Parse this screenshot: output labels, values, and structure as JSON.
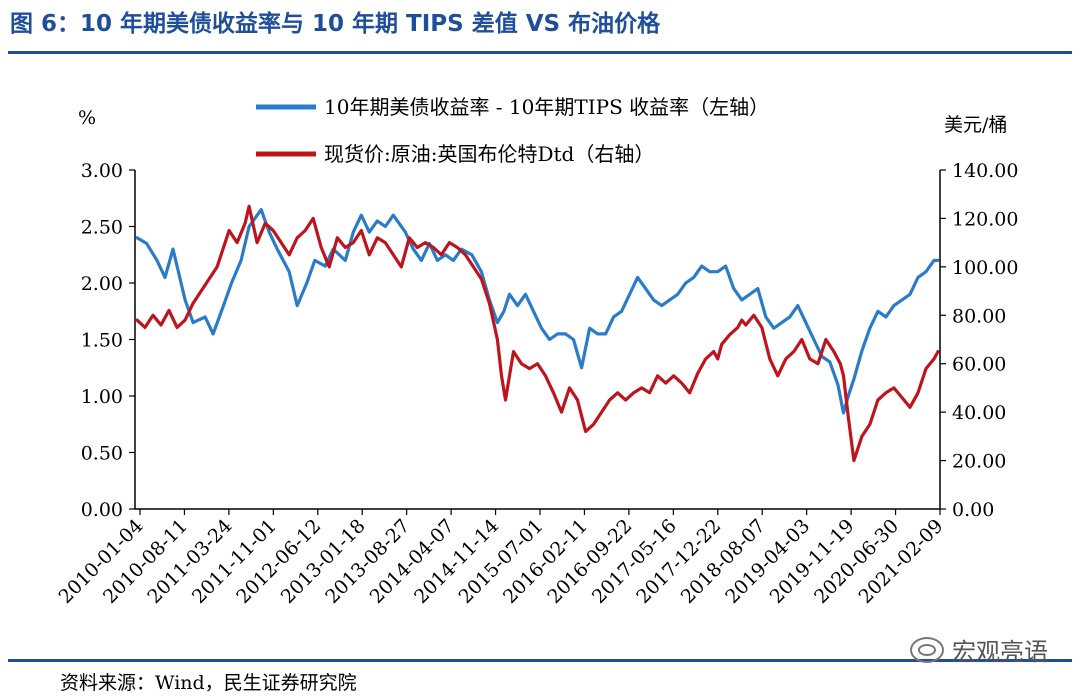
{
  "header": {
    "title": "图 6：10 年期美债收益率与 10 年期 TIPS 差值  VS  布油价格"
  },
  "footer": {
    "source": "资料来源：Wind，民生证券研究院",
    "watermark": "宏观亮语"
  },
  "chart_data": {
    "type": "line",
    "left_unit": "%",
    "right_unit": "美元/桶",
    "left_ylim": [
      0,
      3
    ],
    "right_ylim": [
      0,
      140
    ],
    "left_ticks": [
      "3.00",
      "2.50",
      "2.00",
      "1.50",
      "1.00",
      "0.50",
      "0.00"
    ],
    "right_ticks": [
      "140.00",
      "120.00",
      "100.00",
      "80.00",
      "60.00",
      "40.00",
      "20.00",
      "0.00"
    ],
    "x_ticks": [
      "2010-01-04",
      "2010-08-11",
      "2011-03-24",
      "2011-11-01",
      "2012-06-12",
      "2013-01-18",
      "2013-08-27",
      "2014-04-07",
      "2014-11-14",
      "2015-07-01",
      "2016-02-11",
      "2016-09-22",
      "2017-05-16",
      "2017-12-22",
      "2018-08-07",
      "2019-04-03",
      "2019-11-19",
      "2020-06-30",
      "2021-02-09"
    ],
    "series": [
      {
        "name": "10年期美债收益率 - 10年期TIPS 收益率（左轴）",
        "axis": "left",
        "color": "#2a7ccb",
        "x": [
          0,
          0.012,
          0.025,
          0.035,
          0.045,
          0.06,
          0.07,
          0.085,
          0.095,
          0.108,
          0.118,
          0.13,
          0.14,
          0.155,
          0.165,
          0.175,
          0.19,
          0.2,
          0.212,
          0.222,
          0.235,
          0.245,
          0.26,
          0.27,
          0.28,
          0.29,
          0.3,
          0.31,
          0.32,
          0.335,
          0.345,
          0.355,
          0.365,
          0.375,
          0.385,
          0.395,
          0.405,
          0.418,
          0.43,
          0.44,
          0.45,
          0.458,
          0.465,
          0.475,
          0.485,
          0.495,
          0.505,
          0.515,
          0.525,
          0.535,
          0.545,
          0.555,
          0.565,
          0.575,
          0.585,
          0.595,
          0.605,
          0.615,
          0.625,
          0.635,
          0.645,
          0.655,
          0.665,
          0.675,
          0.685,
          0.695,
          0.705,
          0.715,
          0.725,
          0.735,
          0.745,
          0.755,
          0.765,
          0.775,
          0.785,
          0.795,
          0.805,
          0.815,
          0.825,
          0.835,
          0.845,
          0.855,
          0.865,
          0.875,
          0.882,
          0.888,
          0.895,
          0.905,
          0.915,
          0.925,
          0.935,
          0.945,
          0.955,
          0.965,
          0.975,
          0.985,
          0.995,
          1.0
        ],
        "values": [
          2.4,
          2.35,
          2.2,
          2.05,
          2.3,
          1.85,
          1.65,
          1.7,
          1.55,
          1.8,
          2.0,
          2.2,
          2.5,
          2.65,
          2.45,
          2.3,
          2.1,
          1.8,
          2.0,
          2.2,
          2.15,
          2.3,
          2.2,
          2.45,
          2.6,
          2.45,
          2.55,
          2.5,
          2.6,
          2.45,
          2.3,
          2.2,
          2.35,
          2.2,
          2.25,
          2.2,
          2.3,
          2.25,
          2.1,
          1.85,
          1.65,
          1.75,
          1.9,
          1.8,
          1.9,
          1.75,
          1.6,
          1.5,
          1.55,
          1.55,
          1.5,
          1.25,
          1.6,
          1.55,
          1.55,
          1.7,
          1.75,
          1.9,
          2.05,
          1.95,
          1.85,
          1.8,
          1.85,
          1.9,
          2.0,
          2.05,
          2.15,
          2.1,
          2.1,
          2.15,
          1.95,
          1.85,
          1.9,
          1.95,
          1.7,
          1.6,
          1.65,
          1.7,
          1.8,
          1.65,
          1.5,
          1.35,
          1.3,
          1.1,
          0.85,
          1.0,
          1.15,
          1.4,
          1.6,
          1.75,
          1.7,
          1.8,
          1.85,
          1.9,
          2.05,
          2.1,
          2.2,
          2.2
        ]
      },
      {
        "name": "现货价:原油:英国布伦特Dtd（右轴）",
        "axis": "right",
        "color": "#c0141c",
        "x": [
          0,
          0.01,
          0.02,
          0.03,
          0.04,
          0.05,
          0.06,
          0.07,
          0.08,
          0.09,
          0.1,
          0.115,
          0.125,
          0.135,
          0.14,
          0.15,
          0.16,
          0.17,
          0.18,
          0.19,
          0.2,
          0.21,
          0.22,
          0.23,
          0.24,
          0.25,
          0.26,
          0.27,
          0.28,
          0.29,
          0.3,
          0.31,
          0.32,
          0.33,
          0.34,
          0.35,
          0.36,
          0.37,
          0.38,
          0.39,
          0.4,
          0.41,
          0.42,
          0.43,
          0.44,
          0.45,
          0.455,
          0.46,
          0.465,
          0.47,
          0.48,
          0.49,
          0.5,
          0.51,
          0.52,
          0.53,
          0.535,
          0.54,
          0.55,
          0.56,
          0.57,
          0.58,
          0.59,
          0.6,
          0.61,
          0.62,
          0.63,
          0.64,
          0.65,
          0.66,
          0.67,
          0.68,
          0.69,
          0.7,
          0.71,
          0.72,
          0.725,
          0.73,
          0.74,
          0.75,
          0.755,
          0.76,
          0.77,
          0.78,
          0.79,
          0.8,
          0.81,
          0.82,
          0.83,
          0.84,
          0.85,
          0.86,
          0.87,
          0.878,
          0.882,
          0.888,
          0.895,
          0.905,
          0.915,
          0.925,
          0.935,
          0.945,
          0.955,
          0.965,
          0.975,
          0.985,
          0.995,
          1.0
        ],
        "values": [
          78,
          75,
          80,
          76,
          82,
          75,
          78,
          85,
          90,
          95,
          100,
          115,
          110,
          118,
          125,
          110,
          118,
          115,
          110,
          105,
          112,
          115,
          120,
          108,
          100,
          112,
          108,
          110,
          115,
          105,
          112,
          110,
          105,
          100,
          112,
          108,
          110,
          108,
          105,
          110,
          108,
          105,
          100,
          95,
          85,
          70,
          55,
          45,
          55,
          65,
          60,
          58,
          60,
          55,
          48,
          40,
          45,
          50,
          45,
          32,
          35,
          40,
          45,
          48,
          45,
          48,
          50,
          48,
          55,
          52,
          55,
          52,
          48,
          56,
          62,
          65,
          62,
          68,
          72,
          75,
          78,
          76,
          80,
          75,
          62,
          55,
          62,
          65,
          70,
          62,
          60,
          70,
          65,
          60,
          55,
          38,
          20,
          30,
          35,
          45,
          48,
          50,
          46,
          42,
          48,
          58,
          62,
          65
        ]
      }
    ]
  }
}
